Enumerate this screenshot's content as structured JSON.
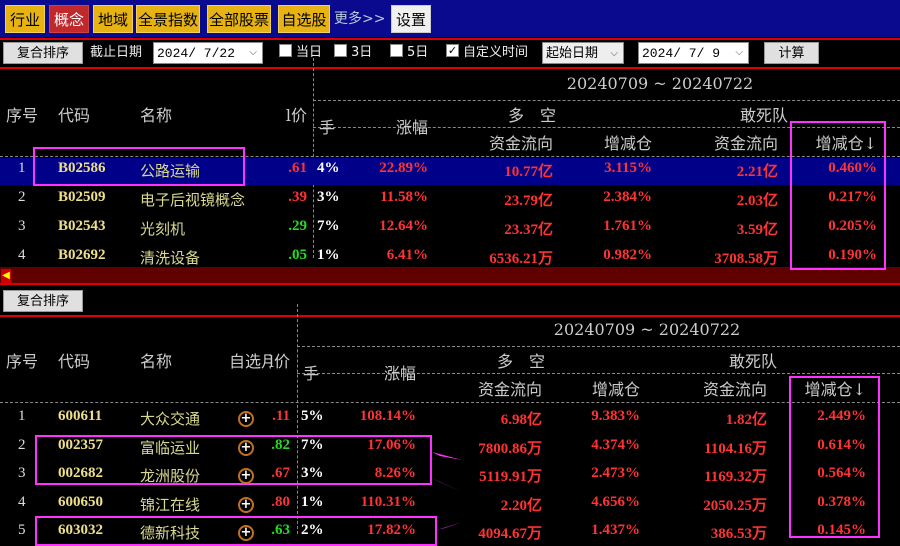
{
  "topbar": {
    "tabs": [
      {
        "label": "行业",
        "active": false
      },
      {
        "label": "概念",
        "active": true
      },
      {
        "label": "地域",
        "active": false
      },
      {
        "label": "全景指数",
        "active": false
      },
      {
        "label": "全部股票",
        "active": false
      },
      {
        "label": "自选股",
        "active": false
      }
    ],
    "more": "更多>>",
    "settings": "设置"
  },
  "toolbar": {
    "sort_button": "复合排序",
    "end_date_label": "截止日期",
    "end_date": "2024/ 7/22",
    "checkboxes": [
      {
        "label": "当日",
        "checked": false
      },
      {
        "label": "3日",
        "checked": false
      },
      {
        "label": "5日",
        "checked": false
      },
      {
        "label": "自定义时间",
        "checked": true
      }
    ],
    "start_select": "起始日期",
    "start_date": "2024/ 7/ 9",
    "calc_button": "计算"
  },
  "headers": {
    "date_range": "20240709 ~ 20240722",
    "duokong": "多　空",
    "gansidui": "敢死队",
    "seq": "序号",
    "code": "代码",
    "name": "名称",
    "price_frag": "l价",
    "watch_frag": "自选月",
    "turnover_frag": "手",
    "change": "涨幅",
    "flow": "资金流向",
    "pos": "增减仓",
    "pos_sorted": "增减仓↓"
  },
  "top_table": {
    "rows": [
      {
        "seq": "1",
        "code": "B02586",
        "name": "公路运输",
        "price": ".61",
        "price_color": "red",
        "turn": "4%",
        "chg": "22.89%",
        "f1": "10.77亿",
        "p1": "3.115%",
        "f2": "2.21亿",
        "p2": "0.460%",
        "selected": true
      },
      {
        "seq": "2",
        "code": "B02509",
        "name": "电子后视镜概念",
        "price": ".39",
        "price_color": "red",
        "turn": "3%",
        "chg": "11.58%",
        "f1": "23.79亿",
        "p1": "2.384%",
        "f2": "2.03亿",
        "p2": "0.217%"
      },
      {
        "seq": "3",
        "code": "B02543",
        "name": "光刻机",
        "price": ".29",
        "price_color": "green",
        "turn": "7%",
        "chg": "12.64%",
        "f1": "23.37亿",
        "p1": "1.761%",
        "f2": "3.59亿",
        "p2": "0.205%"
      },
      {
        "seq": "4",
        "code": "B02692",
        "name": "清洗设备",
        "price": ".05",
        "price_color": "green",
        "turn": "1%",
        "chg": "6.41%",
        "f1": "6536.21万",
        "p1": "0.982%",
        "f2": "3708.58万",
        "p2": "0.190%"
      }
    ]
  },
  "bottom": {
    "sort_button": "复合排序"
  },
  "bottom_table": {
    "rows": [
      {
        "seq": "1",
        "code": "600611",
        "name": "大众交通",
        "price": ".11",
        "price_color": "red",
        "turn": "5%",
        "chg": "108.14%",
        "f1": "6.98亿",
        "p1": "9.383%",
        "f2": "1.82亿",
        "p2": "2.449%"
      },
      {
        "seq": "2",
        "code": "002357",
        "name": "富临运业",
        "price": ".82",
        "price_color": "green",
        "turn": "7%",
        "chg": "17.06%",
        "f1": "7800.86万",
        "p1": "4.374%",
        "f2": "1104.16万",
        "p2": "0.614%"
      },
      {
        "seq": "3",
        "code": "002682",
        "name": "龙洲股份",
        "price": ".67",
        "price_color": "red",
        "turn": "3%",
        "chg": "8.26%",
        "f1": "5119.91万",
        "p1": "2.473%",
        "f2": "1169.32万",
        "p2": "0.564%"
      },
      {
        "seq": "4",
        "code": "600650",
        "name": "锦江在线",
        "price": ".80",
        "price_color": "red",
        "turn": "1%",
        "chg": "110.31%",
        "f1": "2.20亿",
        "p1": "4.656%",
        "f2": "2050.25万",
        "p2": "0.378%"
      },
      {
        "seq": "5",
        "code": "603032",
        "name": "德新科技",
        "price": ".63",
        "price_color": "green",
        "turn": "2%",
        "chg": "17.82%",
        "f1": "4094.67万",
        "p1": "1.437%",
        "f2": "386.53万",
        "p2": "0.145%"
      }
    ]
  },
  "colors": {
    "toolbar_bg": "#0a0a8e",
    "tab": "#e6b312",
    "tab_active": "#c0282c",
    "up": "#ff3333",
    "down": "#22dd22",
    "highlight": "#000088",
    "annotation": "#ff33ff"
  }
}
